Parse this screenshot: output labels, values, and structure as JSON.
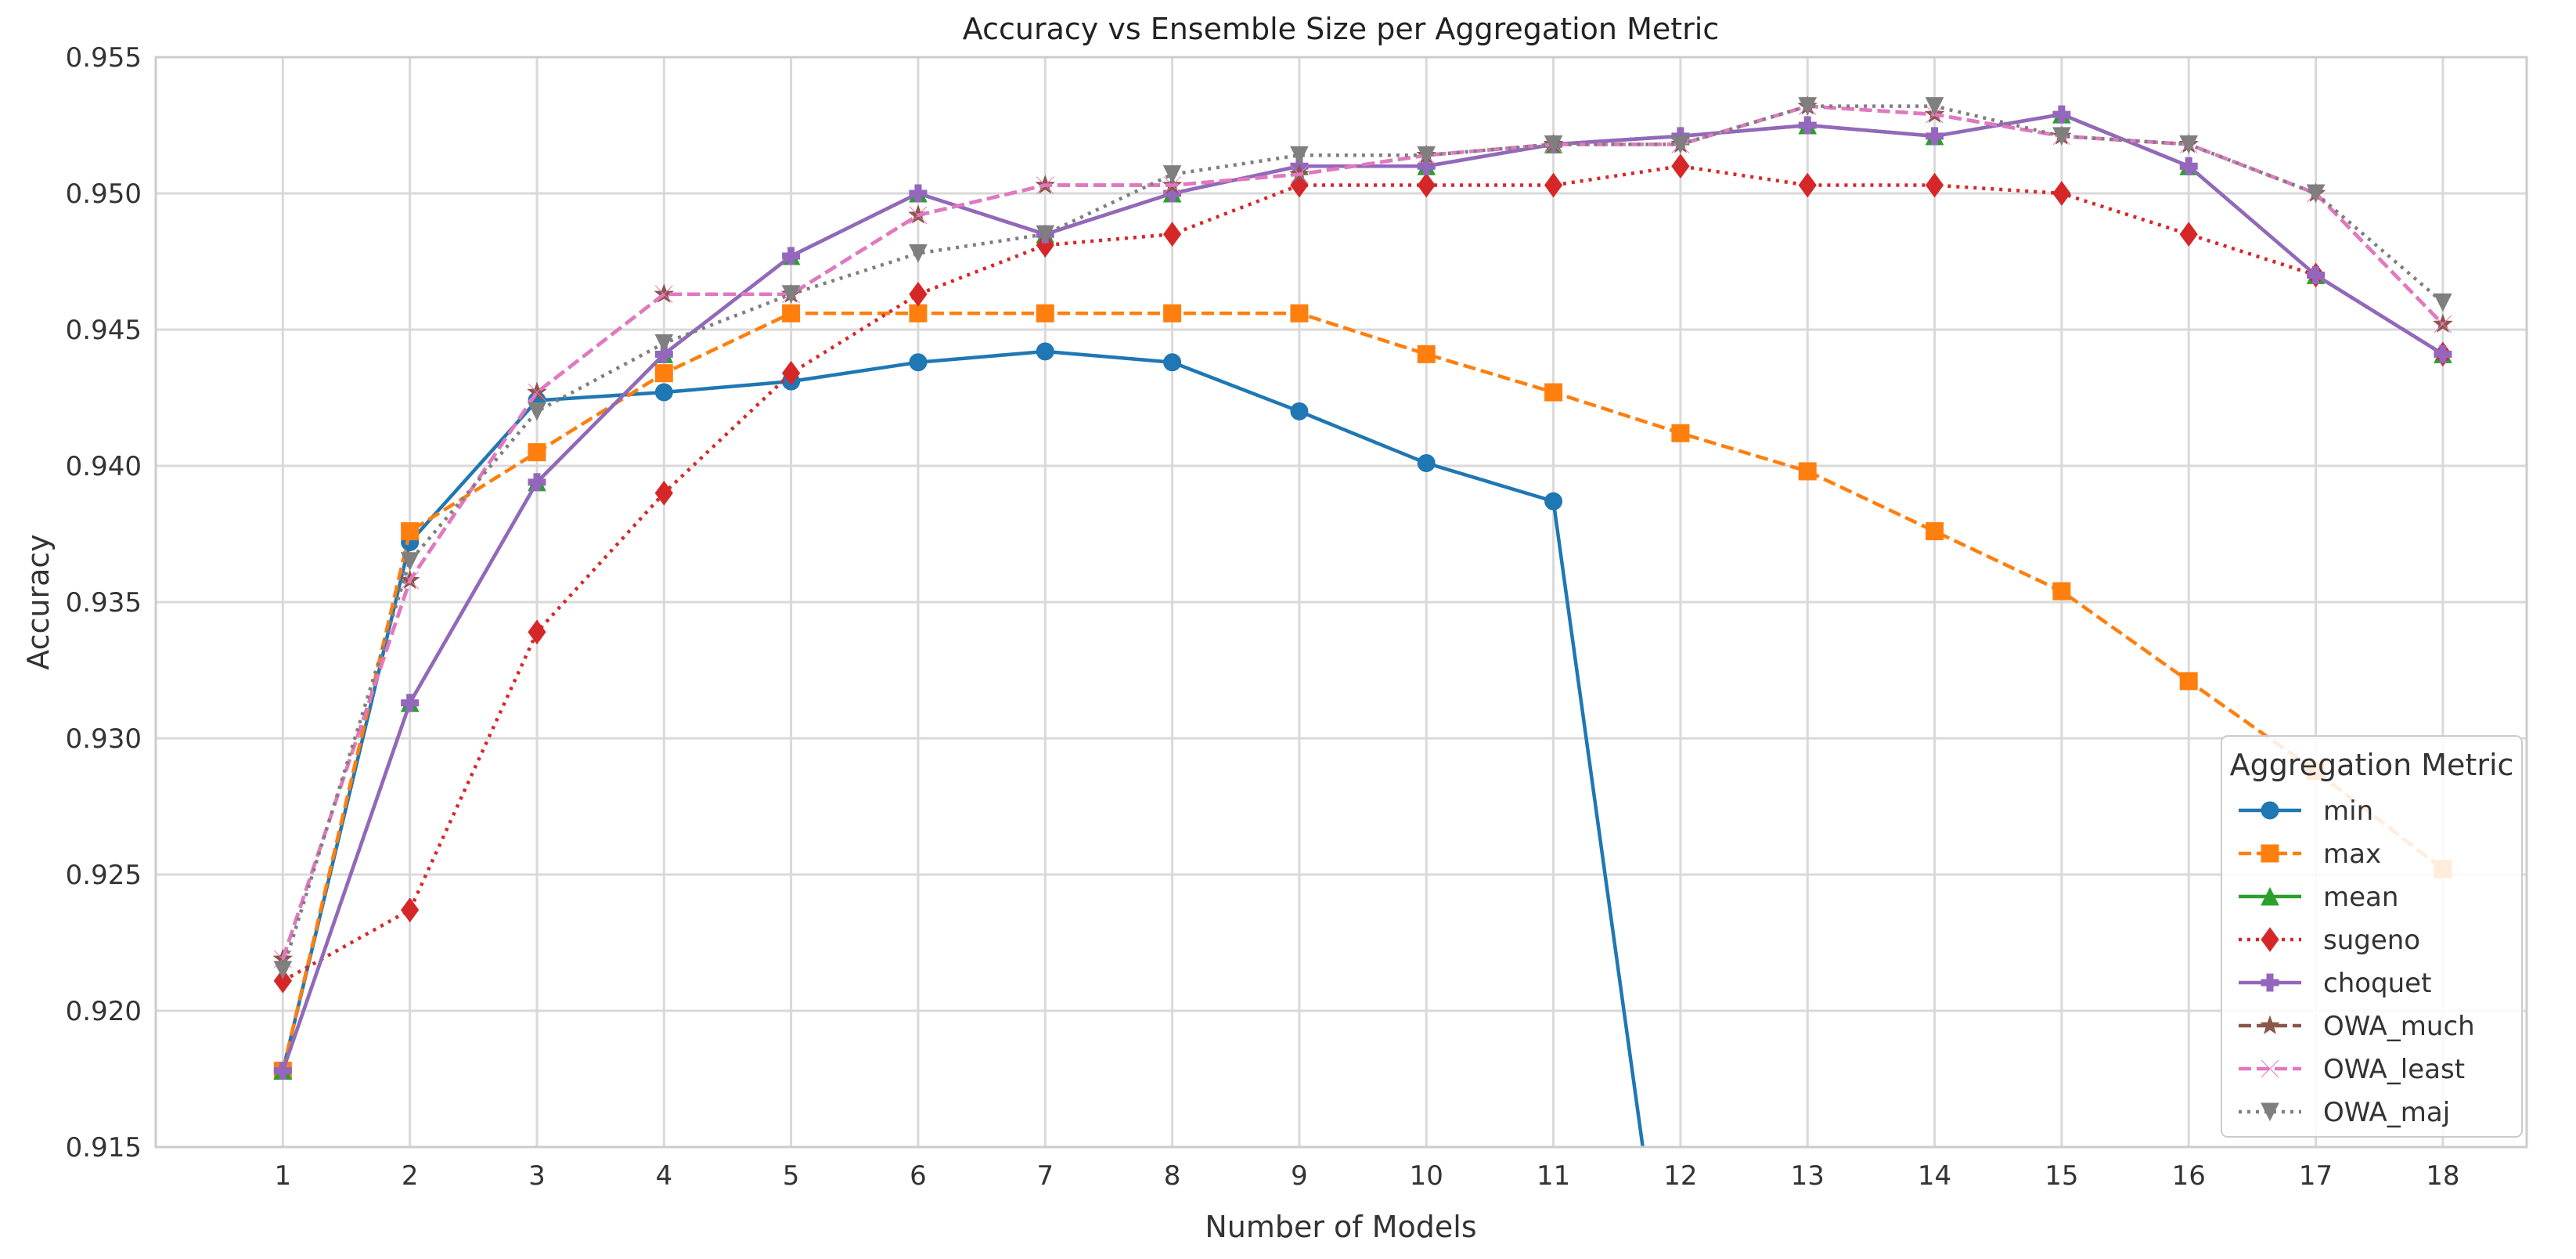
{
  "chart_data": {
    "type": "line",
    "title": "Accuracy vs Ensemble Size per Aggregation Metric",
    "xlabel": "Number of Models",
    "ylabel": "Accuracy",
    "x": [
      1,
      2,
      3,
      4,
      5,
      6,
      7,
      8,
      9,
      10,
      11,
      12,
      13,
      14,
      15,
      16,
      17,
      18
    ],
    "xlim": [
      0.0,
      18.66
    ],
    "ylim": [
      0.915,
      0.955
    ],
    "yticks": [
      "0.915",
      "0.920",
      "0.925",
      "0.930",
      "0.935",
      "0.940",
      "0.945",
      "0.950",
      "0.955"
    ],
    "xticks": [
      "1",
      "2",
      "3",
      "4",
      "5",
      "6",
      "7",
      "8",
      "9",
      "10",
      "11",
      "12",
      "13",
      "14",
      "15",
      "16",
      "17",
      "18"
    ],
    "grid": true,
    "legend": {
      "title": "Aggregation Metric",
      "placement": "lower-right"
    },
    "series": [
      {
        "name": "min",
        "color": "#1f77b4",
        "marker": "circle",
        "linestyle": "solid",
        "values": [
          0.9178,
          0.9372,
          0.9424,
          0.9427,
          0.9431,
          0.9438,
          0.9442,
          0.9438,
          0.942,
          0.9401,
          0.9387,
          0.905,
          null,
          null,
          null,
          null,
          null,
          null
        ]
      },
      {
        "name": "max",
        "color": "#ff7f0e",
        "marker": "square",
        "linestyle": "dashed",
        "values": [
          0.9178,
          0.9376,
          0.9405,
          0.9434,
          0.9456,
          0.9456,
          0.9456,
          0.9456,
          0.9456,
          0.9441,
          0.9427,
          0.9412,
          0.9398,
          0.9376,
          0.9354,
          0.9321,
          0.9288,
          0.9252
        ]
      },
      {
        "name": "mean",
        "color": "#2ca02c",
        "marker": "triangle-up",
        "linestyle": "solid",
        "values": [
          0.9178,
          0.9313,
          0.9394,
          0.9441,
          0.9477,
          0.95,
          0.9485,
          0.95,
          0.951,
          0.951,
          0.9518,
          0.9521,
          0.9525,
          0.9521,
          0.9529,
          0.951,
          0.947,
          0.9441
        ]
      },
      {
        "name": "sugeno",
        "color": "#d62728",
        "marker": "diamond",
        "linestyle": "dotted",
        "values": [
          0.9211,
          0.9237,
          0.9339,
          0.939,
          0.9434,
          0.9463,
          0.9481,
          0.9485,
          0.9503,
          0.9503,
          0.9503,
          0.951,
          0.9503,
          0.9503,
          0.95,
          0.9485,
          0.947,
          0.9441
        ]
      },
      {
        "name": "choquet",
        "color": "#9467bd",
        "marker": "plus",
        "linestyle": "solid",
        "values": [
          0.9178,
          0.9313,
          0.9394,
          0.9441,
          0.9477,
          0.95,
          0.9485,
          0.95,
          0.951,
          0.951,
          0.9518,
          0.9521,
          0.9525,
          0.9521,
          0.9529,
          0.951,
          0.947,
          0.9441
        ]
      },
      {
        "name": "OWA_much",
        "color": "#8c564b",
        "marker": "star",
        "linestyle": "dashed",
        "values": [
          0.9219,
          0.9358,
          0.9427,
          0.9463,
          0.9463,
          0.9492,
          0.9503,
          0.9503,
          0.9507,
          0.9514,
          0.9518,
          0.9518,
          0.9532,
          0.9529,
          0.9521,
          0.9518,
          0.95,
          0.9452
        ]
      },
      {
        "name": "OWA_least",
        "color": "#e377c2",
        "marker": "x",
        "linestyle": "dashed",
        "values": [
          0.9219,
          0.9358,
          0.9427,
          0.9463,
          0.9463,
          0.9492,
          0.9503,
          0.9503,
          0.9507,
          0.9514,
          0.9518,
          0.9518,
          0.9532,
          0.9529,
          0.9521,
          0.9518,
          0.95,
          0.9452
        ]
      },
      {
        "name": "OWA_maj",
        "color": "#7f7f7f",
        "marker": "triangle-down",
        "linestyle": "dotted",
        "values": [
          0.9215,
          0.9365,
          0.942,
          0.9445,
          0.9463,
          0.9478,
          0.9485,
          0.9507,
          0.9514,
          0.9514,
          0.9518,
          0.9518,
          0.9532,
          0.9532,
          0.9521,
          0.9518,
          0.95,
          0.946
        ]
      }
    ]
  }
}
